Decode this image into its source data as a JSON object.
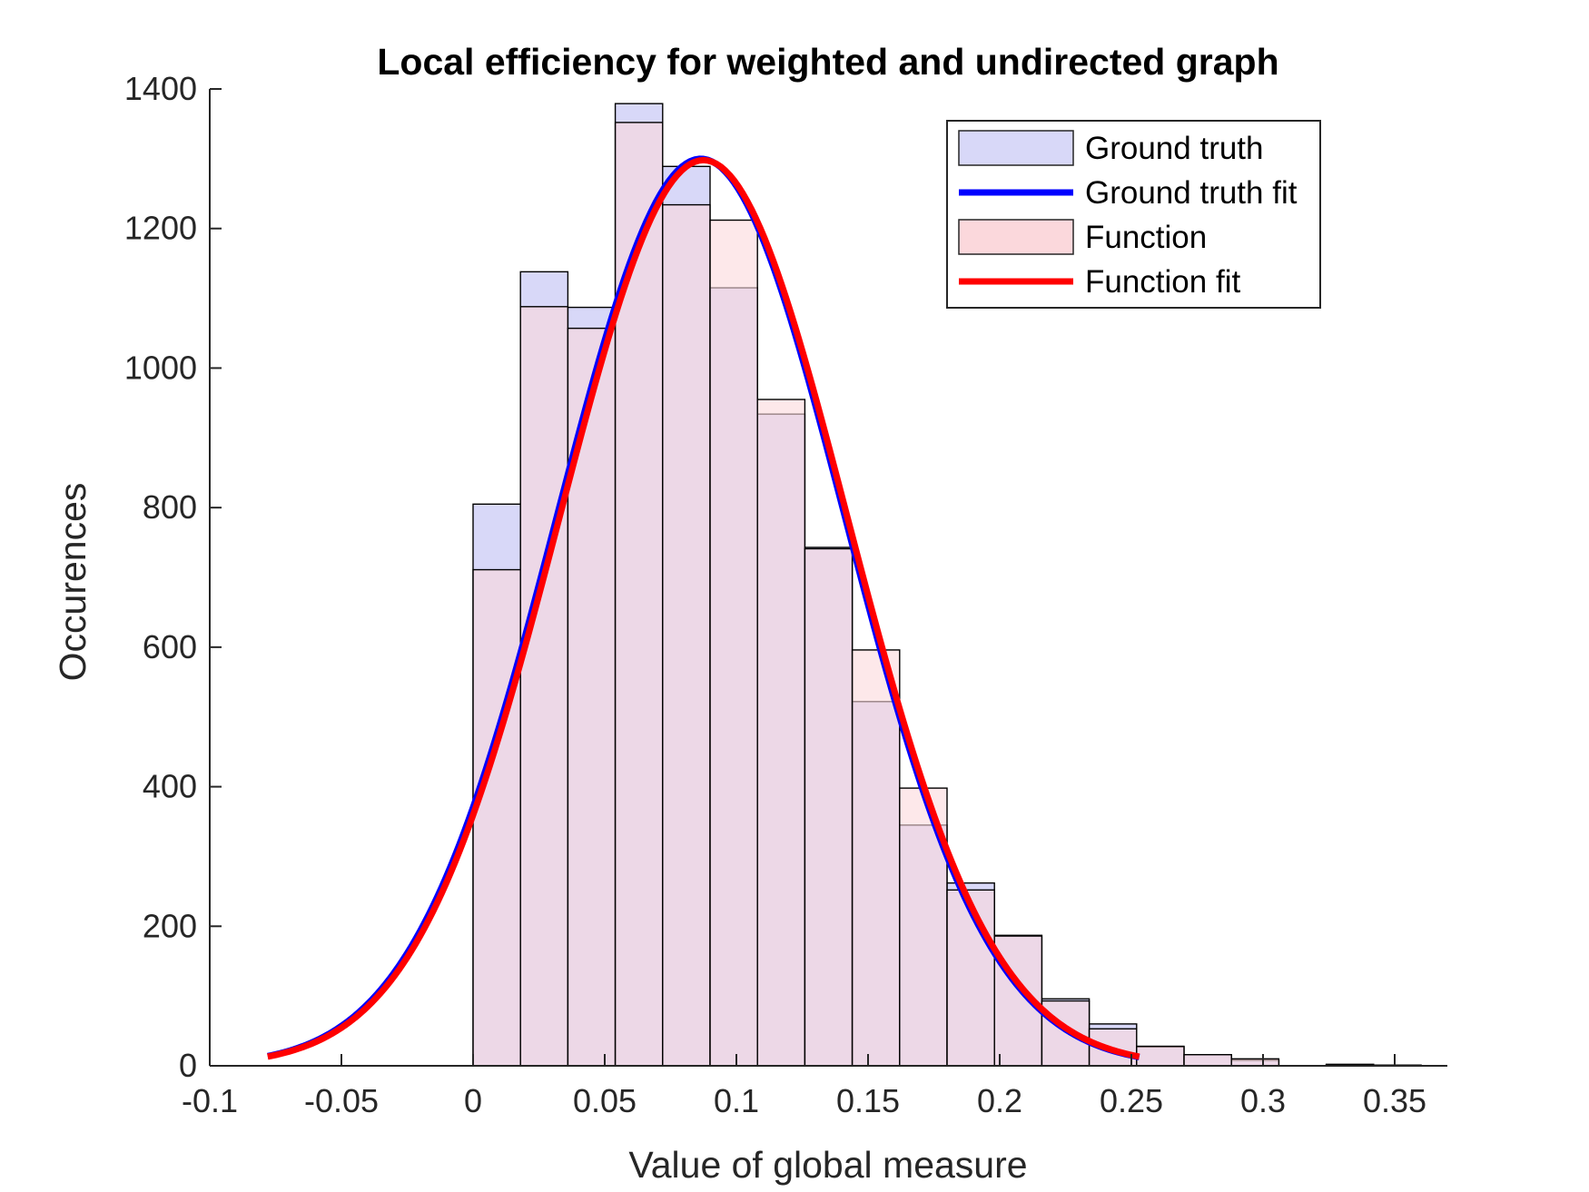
{
  "chart_data": {
    "type": "bar",
    "title": "Local efficiency for weighted and undirected graph",
    "xlabel": "Value of global measure",
    "ylabel": "Occurences",
    "xlim": [
      -0.1,
      0.37
    ],
    "ylim": [
      0,
      1400
    ],
    "xticks": [
      -0.1,
      -0.05,
      0,
      0.05,
      0.1,
      0.15,
      0.2,
      0.25,
      0.3,
      0.35
    ],
    "xtick_labels": [
      "-0.1",
      "-0.05",
      "0",
      "0.05",
      "0.1",
      "0.15",
      "0.2",
      "0.25",
      "0.3",
      "0.35"
    ],
    "yticks": [
      0,
      200,
      400,
      600,
      800,
      1000,
      1200,
      1400
    ],
    "ytick_labels": [
      "0",
      "200",
      "400",
      "600",
      "800",
      "1000",
      "1200",
      "1400"
    ],
    "grid": false,
    "legend_position": "top-right",
    "series": [
      {
        "name": "Ground truth",
        "kind": "histogram",
        "color": "#d8d8f8",
        "bin_edges": [
          0,
          0.018,
          0.036,
          0.054,
          0.072,
          0.09,
          0.108,
          0.126,
          0.144,
          0.162,
          0.18,
          0.198,
          0.216,
          0.234,
          0.252,
          0.27,
          0.288,
          0.306,
          0.324,
          0.342,
          0.36
        ],
        "counts": [
          805,
          1138,
          1087,
          1379,
          1289,
          1115,
          934,
          743,
          522,
          345,
          262,
          187,
          96,
          60,
          27,
          16,
          8,
          0,
          2,
          1
        ]
      },
      {
        "name": "Ground truth fit",
        "kind": "normal_fit",
        "color": "#0000ff",
        "mean": 0.0865,
        "std": 0.0546,
        "peak": 1300,
        "x_range": [
          -0.078,
          0.253
        ]
      },
      {
        "name": "Function",
        "kind": "histogram",
        "color": "#fbd8dc",
        "bin_edges": [
          0,
          0.018,
          0.036,
          0.054,
          0.072,
          0.09,
          0.108,
          0.126,
          0.144,
          0.162,
          0.18,
          0.198,
          0.216,
          0.234,
          0.252,
          0.27,
          0.288,
          0.306,
          0.324,
          0.342,
          0.36
        ],
        "counts": [
          711,
          1088,
          1057,
          1352,
          1234,
          1212,
          955,
          741,
          596,
          398,
          252,
          186,
          93,
          53,
          28,
          16,
          10,
          0,
          2,
          1
        ]
      },
      {
        "name": "Function fit",
        "kind": "normal_fit",
        "color": "#ff0000",
        "mean": 0.0875,
        "std": 0.0546,
        "peak": 1298,
        "x_range": [
          -0.078,
          0.253
        ]
      }
    ]
  }
}
